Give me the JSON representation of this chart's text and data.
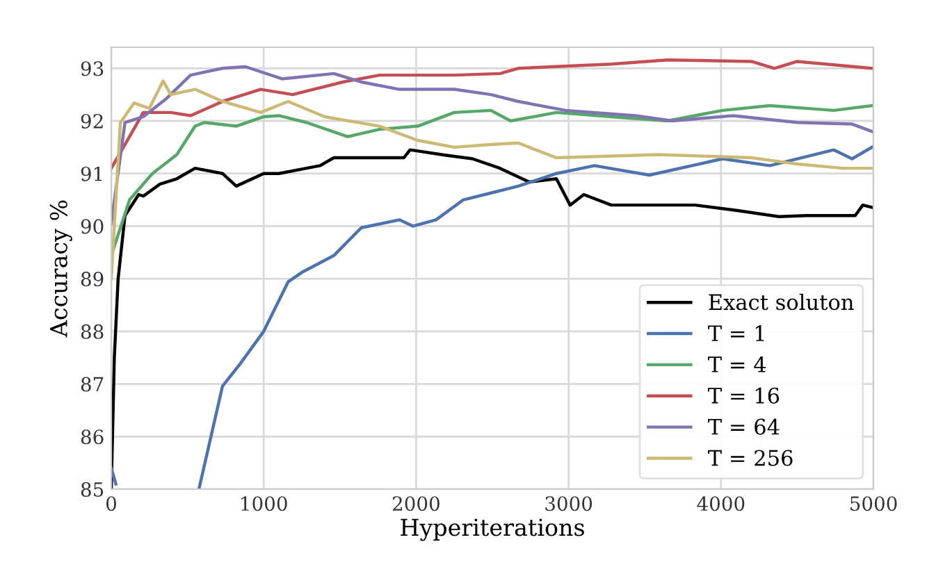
{
  "chart_data": {
    "type": "line",
    "xlabel": "Hyperiterations",
    "ylabel": "Accuracy %",
    "xlim": [
      0,
      5000
    ],
    "ylim": [
      85,
      93.4
    ],
    "xticks": [
      0,
      1000,
      2000,
      3000,
      4000,
      5000
    ],
    "yticks": [
      85,
      86,
      87,
      88,
      89,
      90,
      91,
      92,
      93
    ],
    "grid": true,
    "legend": "bottom right",
    "line_style": "solid",
    "marker": "none",
    "series": [
      {
        "name": "Exact soluton",
        "color": "#000000",
        "x": [
          0,
          20,
          45,
          90,
          180,
          210,
          320,
          430,
          550,
          730,
          820,
          1000,
          1100,
          1280,
          1370,
          1460,
          1640,
          1820,
          1920,
          1960,
          2190,
          2370,
          2550,
          2740,
          2920,
          3010,
          3100,
          3280,
          3380,
          3470,
          3650,
          3830,
          4100,
          4380,
          4560,
          4740,
          4880,
          4930,
          5000
        ],
        "values": [
          85,
          87.5,
          89,
          90.2,
          90.6,
          90.57,
          90.8,
          90.9,
          91.1,
          91.0,
          90.76,
          91.0,
          91.0,
          91.1,
          91.15,
          91.3,
          91.3,
          91.3,
          91.3,
          91.45,
          91.35,
          91.28,
          91.1,
          90.84,
          90.9,
          90.4,
          90.6,
          90.4,
          90.4,
          90.4,
          90.4,
          90.4,
          90.3,
          90.18,
          90.2,
          90.2,
          90.2,
          90.4,
          90.35
        ]
      },
      {
        "name": "T = 1",
        "color": "#4c72b0",
        "x": [
          0,
          30,
          40,
          575,
          730,
          850,
          1000,
          1160,
          1250,
          1460,
          1640,
          1890,
          1980,
          2130,
          2310,
          2490,
          2670,
          2920,
          3170,
          3530,
          4010,
          4320,
          4740,
          4860,
          4990
        ],
        "values": [
          85.4,
          85.1,
          null,
          85.0,
          86.96,
          87.4,
          88.0,
          88.94,
          89.12,
          89.44,
          89.97,
          90.12,
          90.0,
          90.12,
          90.5,
          90.63,
          90.76,
          91.0,
          91.15,
          90.97,
          91.28,
          91.15,
          91.45,
          91.28,
          91.5
        ]
      },
      {
        "name": "T = 4",
        "color": "#55a868",
        "x": [
          0,
          120,
          270,
          430,
          550,
          610,
          820,
          1000,
          1100,
          1280,
          1550,
          1760,
          2010,
          2250,
          2490,
          2620,
          2920,
          3280,
          3650,
          4010,
          4320,
          4740,
          4990
        ],
        "values": [
          89.44,
          90.5,
          91.0,
          91.36,
          91.9,
          91.97,
          91.9,
          92.08,
          92.1,
          91.97,
          91.7,
          91.84,
          91.9,
          92.16,
          92.2,
          92.0,
          92.16,
          92.08,
          92.0,
          92.2,
          92.29,
          92.2,
          92.29
        ]
      },
      {
        "name": "T = 16",
        "color": "#c44e52",
        "x": [
          0,
          120,
          210,
          390,
          520,
          730,
          980,
          1190,
          1520,
          1760,
          2250,
          2550,
          2670,
          3280,
          3650,
          4200,
          4350,
          4500,
          4990
        ],
        "values": [
          91.1,
          91.7,
          92.16,
          92.16,
          92.1,
          92.37,
          92.6,
          92.5,
          92.74,
          92.87,
          92.87,
          92.9,
          93.0,
          93.08,
          93.16,
          93.13,
          93.0,
          93.13,
          93.0
        ]
      },
      {
        "name": "T = 64",
        "color": "#8172b2",
        "x": [
          0,
          90,
          210,
          360,
          520,
          730,
          880,
          1120,
          1460,
          1640,
          1890,
          2250,
          2490,
          2670,
          2980,
          3440,
          3680,
          4080,
          4500,
          4860,
          4990
        ],
        "values": [
          90.05,
          91.97,
          92.08,
          92.42,
          92.87,
          93.0,
          93.03,
          92.8,
          92.9,
          92.74,
          92.6,
          92.6,
          92.5,
          92.37,
          92.2,
          92.1,
          92.0,
          92.1,
          91.97,
          91.94,
          91.8
        ]
      },
      {
        "name": "T = 256",
        "color": "#ccb974",
        "x": [
          0,
          60,
          150,
          250,
          340,
          390,
          550,
          730,
          980,
          1160,
          1400,
          1760,
          2010,
          2250,
          2490,
          2670,
          2920,
          3590,
          4200,
          4500,
          4800,
          4990
        ],
        "values": [
          89.0,
          91.97,
          92.34,
          92.24,
          92.76,
          92.5,
          92.6,
          92.37,
          92.16,
          92.37,
          92.08,
          91.9,
          91.63,
          91.5,
          91.55,
          91.58,
          91.3,
          91.36,
          91.3,
          91.18,
          91.1,
          91.1
        ]
      }
    ]
  }
}
